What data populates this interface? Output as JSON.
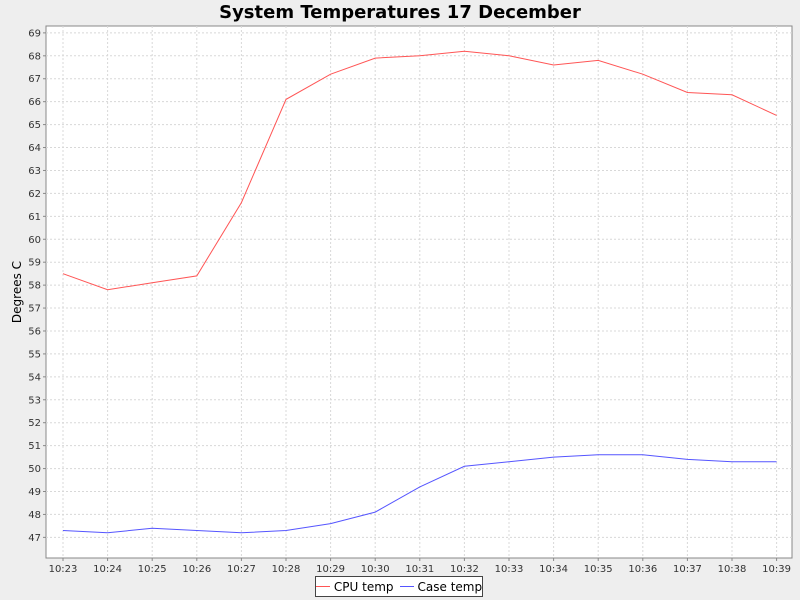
{
  "chart_data": {
    "type": "line",
    "title": "System Temperatures 17 December",
    "ylabel": "Degrees C",
    "xlabel": "",
    "ylim": [
      46.1,
      69.3
    ],
    "yticks": [
      47,
      48,
      49,
      50,
      51,
      52,
      53,
      54,
      55,
      56,
      57,
      58,
      59,
      60,
      61,
      62,
      63,
      64,
      65,
      66,
      67,
      68,
      69
    ],
    "x": [
      "10:23",
      "10:24",
      "10:25",
      "10:26",
      "10:27",
      "10:28",
      "10:29",
      "10:30",
      "10:31",
      "10:32",
      "10:33",
      "10:34",
      "10:35",
      "10:36",
      "10:37",
      "10:38",
      "10:39"
    ],
    "grid": true,
    "legend_position": "bottom",
    "series": [
      {
        "name": "CPU temp",
        "color": "#ff5555",
        "values": [
          58.5,
          57.8,
          58.1,
          58.4,
          61.6,
          66.1,
          67.2,
          67.9,
          68.0,
          68.2,
          68.0,
          67.6,
          67.8,
          67.2,
          66.4,
          66.3,
          65.4
        ]
      },
      {
        "name": "Case temp",
        "color": "#5555ff",
        "values": [
          47.3,
          47.2,
          47.4,
          47.3,
          47.2,
          47.3,
          47.6,
          48.1,
          49.2,
          50.1,
          50.3,
          50.5,
          50.6,
          50.6,
          50.4,
          50.3,
          50.3
        ]
      }
    ]
  }
}
